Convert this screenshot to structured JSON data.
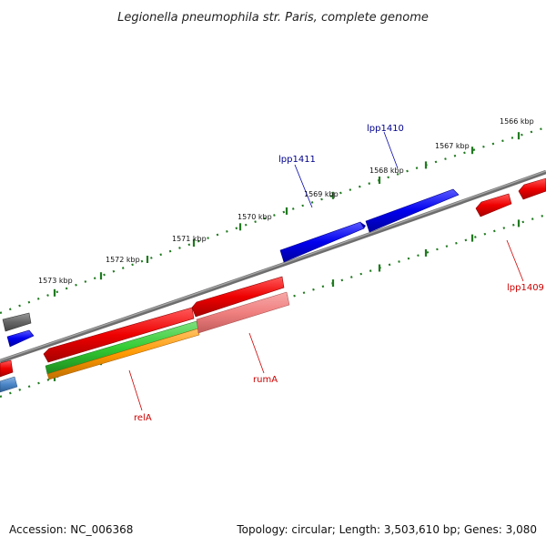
{
  "title": "Legionella pneumophila str. Paris, complete genome",
  "footer": {
    "accession": "Accession: NC_006368",
    "info": "Topology: circular; Length: 3,503,610 bp; Genes: 3,080"
  },
  "colors": {
    "backbone": "#7a7a7a",
    "ticks": "#1f7a1f",
    "forward_label": "#00008b",
    "reverse_label": "#cc0000"
  },
  "kbp_labels": [
    "1573 kbp",
    "1572 kbp",
    "1571 kbp",
    "1570 kbp",
    "1569 kbp",
    "1568 kbp",
    "1567 kbp",
    "1566 kbp"
  ],
  "genes": [
    {
      "id": "lpp1411",
      "label": "lpp1411",
      "strand": "forward",
      "color": "#0000ee"
    },
    {
      "id": "lpp1410",
      "label": "lpp1410",
      "strand": "forward",
      "color": "#0000ee"
    },
    {
      "id": "lpp1409",
      "label": "lpp1409",
      "strand": "reverse",
      "color": "#ee0000"
    },
    {
      "id": "rumA",
      "label": "rumA",
      "strand": "reverse",
      "color": "#ee0000"
    },
    {
      "id": "relA",
      "label": "relA",
      "strand": "reverse",
      "color": "#ee0000"
    }
  ],
  "legend_colors": [
    "#ee0000",
    "#0000ee",
    "#f08080",
    "#33cc33",
    "#ff9900",
    "#666666",
    "#4a86c8"
  ]
}
